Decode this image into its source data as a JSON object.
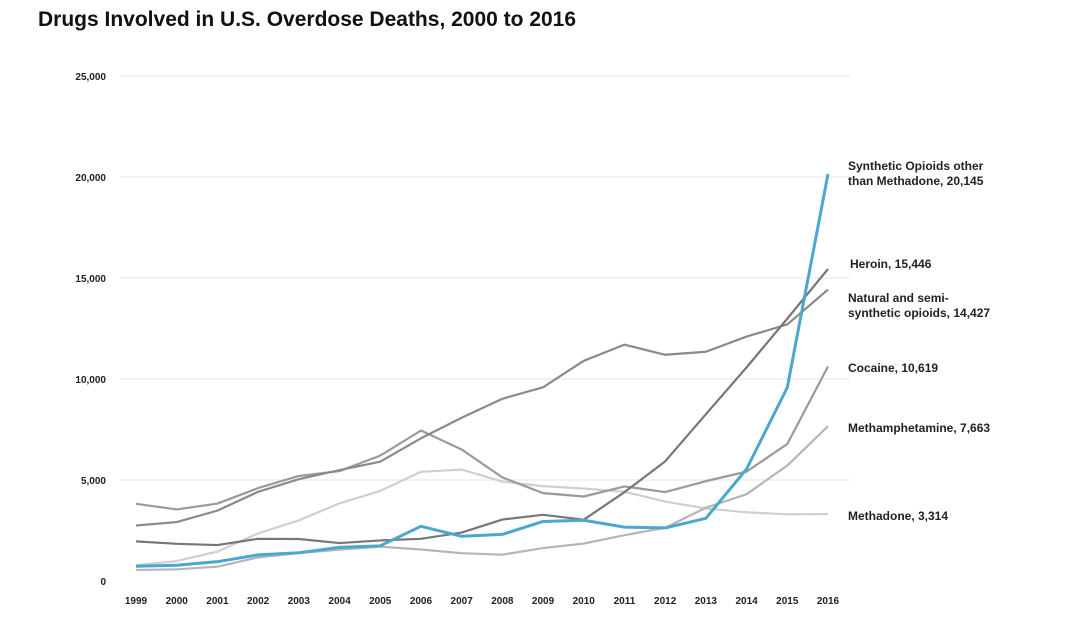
{
  "chart_data": {
    "type": "line",
    "title": "Drugs Involved in U.S. Overdose Deaths, 2000 to 2016",
    "xlabel": "",
    "ylabel": "",
    "ylim": [
      0,
      25000
    ],
    "yticks": [
      "0",
      "5,000",
      "10,000",
      "15,000",
      "20,000",
      "25,000"
    ],
    "ytick_values": [
      0,
      5000,
      10000,
      15000,
      20000,
      25000
    ],
    "x": [
      "1999",
      "2000",
      "2001",
      "2002",
      "2003",
      "2004",
      "2005",
      "2006",
      "2007",
      "2008",
      "2009",
      "2010",
      "2011",
      "2012",
      "2013",
      "2014",
      "2015",
      "2016"
    ],
    "grid": true,
    "legend": "direct labels right",
    "series": [
      {
        "name": "Synthetic Opioids other than Methadone",
        "label": [
          "Synthetic Opioids other",
          "than Methadone, 20,145"
        ],
        "color": "#4aa8cc",
        "values": [
          730,
          782,
          957,
          1295,
          1400,
          1664,
          1742,
          2707,
          2213,
          2306,
          2946,
          3007,
          2666,
          2628,
          3105,
          5544,
          9580,
          20145
        ]
      },
      {
        "name": "Heroin",
        "label": [
          "Heroin, 15,446"
        ],
        "color": "#777777",
        "values": [
          1960,
          1842,
          1779,
          2089,
          2080,
          1878,
          2009,
          2088,
          2399,
          3041,
          3278,
          3036,
          4397,
          5925,
          8257,
          10574,
          12989,
          15446
        ]
      },
      {
        "name": "Natural and semi-synthetic opioids",
        "label": [
          "Natural and semi-",
          "synthetic opioids, 14,427"
        ],
        "color": "#8a8a8a",
        "values": [
          2749,
          2917,
          3484,
          4416,
          5040,
          5492,
          5905,
          7065,
          8080,
          9022,
          9590,
          10900,
          11700,
          11200,
          11350,
          12100,
          12700,
          14427
        ]
      },
      {
        "name": "Cocaine",
        "label": [
          "Cocaine, 10,619"
        ],
        "color": "#9a9a9a",
        "values": [
          3822,
          3544,
          3833,
          4599,
          5199,
          5443,
          6208,
          7448,
          6512,
          5129,
          4350,
          4183,
          4681,
          4404,
          4944,
          5415,
          6784,
          10619
        ]
      },
      {
        "name": "Methamphetamine",
        "label": [
          "Methamphetamine, 7,663"
        ],
        "color": "#b5b5b5",
        "values": [
          547,
          578,
          708,
          1168,
          1386,
          1552,
          1700,
          1560,
          1378,
          1302,
          1632,
          1854,
          2268,
          2635,
          3627,
          4298,
          5716,
          7663
        ]
      },
      {
        "name": "Methadone",
        "label": [
          "Methadone, 3,314"
        ],
        "color": "#cfcfcf",
        "values": [
          784,
          988,
          1456,
          2358,
          3000,
          3845,
          4460,
          5406,
          5518,
          4924,
          4696,
          4577,
          4418,
          3932,
          3591,
          3400,
          3301,
          3314
        ]
      }
    ]
  }
}
